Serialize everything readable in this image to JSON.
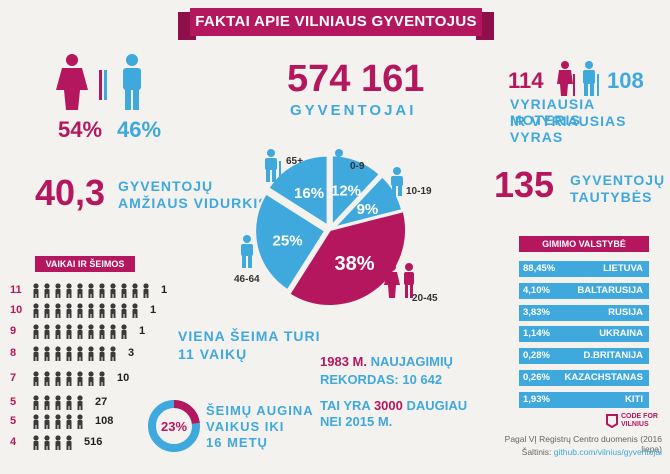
{
  "title": "FAKTAI APIE VILNIAUS GYVENTOJUS",
  "gender": {
    "female_pct": "54%",
    "male_pct": "46%",
    "female_ratio": 0.54
  },
  "population": {
    "value": "574 161",
    "label": "GYVENTOJAI"
  },
  "oldest": {
    "woman_age": "114",
    "man_age": "108",
    "line1": "VYRIAUSIA MOTERIS",
    "line2": "IR VYRIAUSIAS VYRAS"
  },
  "age_avg": {
    "value": "40,3",
    "line1": "GYVENTOJŲ",
    "line2": "AMŽIAUS VIDURKIS"
  },
  "nationalities": {
    "value": "135",
    "line1": "GYVENTOJŲ",
    "line2": "TAUTYBĖS"
  },
  "chart_data": [
    {
      "type": "pie",
      "title": "",
      "categories": [
        "0-9",
        "10-19",
        "20-45",
        "46-64",
        "65+"
      ],
      "values": [
        12,
        9,
        38,
        25,
        16
      ],
      "labels": [
        "12%",
        "9%",
        "38%",
        "25%",
        "16%"
      ],
      "colors": [
        "#3fa8dd",
        "#3fa8dd",
        "#b5175f",
        "#3fa8dd",
        "#3fa8dd"
      ]
    },
    {
      "type": "table",
      "title": "VAIKAI IR ŠEIMOS",
      "rows": [
        {
          "children": "11",
          "families": "1"
        },
        {
          "children": "10",
          "families": "1"
        },
        {
          "children": "9",
          "families": "1"
        },
        {
          "children": "8",
          "families": "3"
        },
        {
          "children": "7",
          "families": "10"
        },
        {
          "children": "5",
          "families": "27"
        },
        {
          "children": "5",
          "families": "108"
        },
        {
          "children": "4",
          "families": "516"
        }
      ]
    },
    {
      "type": "table",
      "title": "GIMIMO VALSTYBĖ",
      "rows": [
        {
          "pct": "88,45%",
          "country": "LIETUVA"
        },
        {
          "pct": "4,10%",
          "country": "BALTARUSIJA"
        },
        {
          "pct": "3,83%",
          "country": "RUSIJA"
        },
        {
          "pct": "1,14%",
          "country": "UKRAINA"
        },
        {
          "pct": "0,28%",
          "country": "D.BRITANIJA"
        },
        {
          "pct": "0,26%",
          "country": "KAZACHSTANAS"
        },
        {
          "pct": "1,93%",
          "country": "KITI"
        }
      ]
    },
    {
      "type": "pie",
      "title": "",
      "categories": [
        "ŠEIMŲ AUGINA VAIKUS IKI 16 METŲ",
        ""
      ],
      "values": [
        23,
        77
      ],
      "labels": [
        "23%"
      ],
      "colors": [
        "#b5175f",
        "#3fa8dd"
      ]
    }
  ],
  "family_note": {
    "line1": "VIENA ŠEIMA TURI",
    "line2": "11 VAIKŲ"
  },
  "newborns": {
    "year": "1983 M.",
    "line1_rest": "NAUJAGIMIŲ",
    "line2": "REKORDAS: 10 642",
    "line3_a": "TAI YRA",
    "line3_num": "3000",
    "line3_b": "DAUGIAU",
    "line4": "NEI 2015 M."
  },
  "kids_under16": {
    "line1": "ŠEIMŲ AUGINA",
    "line2": "VAIKUS IKI",
    "line3": "16 METŲ"
  },
  "footer": {
    "logo_line1": "CODE FOR",
    "logo_line2": "VILNIUS",
    "source1": "Pagal VĮ Registrų Centro duomenis (2016 liepa)",
    "source2_label": "Šaltinis:",
    "source2_link": "github.com/vilnius/gyventojai"
  },
  "colors": {
    "magenta": "#b5175f",
    "blue": "#3fa8dd",
    "dark": "#3a3a3a",
    "bg": "#f4f2ee"
  }
}
